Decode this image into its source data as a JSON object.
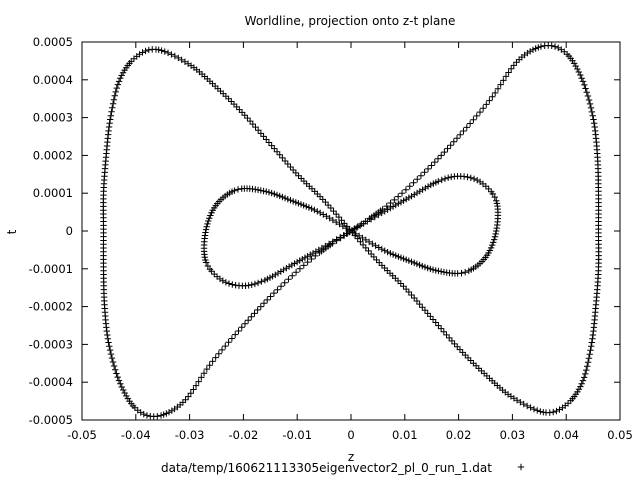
{
  "chart_data": {
    "type": "scatter",
    "title": "Worldline, projection onto z-t plane",
    "xlabel": "z",
    "ylabel": "t",
    "xlim": [
      -0.05,
      0.05
    ],
    "ylim": [
      -0.0005,
      0.0005
    ],
    "xticks": [
      {
        "value": -0.05,
        "label": "-0.05"
      },
      {
        "value": -0.04,
        "label": "-0.04"
      },
      {
        "value": -0.03,
        "label": "-0.03"
      },
      {
        "value": -0.02,
        "label": "-0.02"
      },
      {
        "value": -0.01,
        "label": "-0.01"
      },
      {
        "value": 0,
        "label": "0"
      },
      {
        "value": 0.01,
        "label": "0.01"
      },
      {
        "value": 0.02,
        "label": "0.02"
      },
      {
        "value": 0.03,
        "label": "0.03"
      },
      {
        "value": 0.04,
        "label": "0.04"
      },
      {
        "value": 0.05,
        "label": "0.05"
      }
    ],
    "yticks": [
      {
        "value": -0.0005,
        "label": "-0.0005"
      },
      {
        "value": -0.0004,
        "label": "-0.0004"
      },
      {
        "value": -0.0003,
        "label": "-0.0003"
      },
      {
        "value": -0.0002,
        "label": "-0.0002"
      },
      {
        "value": -0.0001,
        "label": "-0.0001"
      },
      {
        "value": 0,
        "label": "0"
      },
      {
        "value": 0.0001,
        "label": "0.0001"
      },
      {
        "value": 0.0002,
        "label": "0.0002"
      },
      {
        "value": 0.0003,
        "label": "0.0003"
      },
      {
        "value": 0.0004,
        "label": "0.0004"
      },
      {
        "value": 0.0005,
        "label": "0.0005"
      }
    ],
    "grid": false,
    "legend_position": "bottom-center",
    "series": [
      {
        "name": "data/temp/160621113305eigenvector2_pl_0_run_1.dat",
        "marker": "+",
        "color": "#000000",
        "curves": [
          {
            "kind": "outer-loop",
            "points": [
              [
                0,
                0
              ],
              [
                0.007,
                7e-05
              ],
              [
                0.014,
                0.00016
              ],
              [
                0.02,
                0.00025
              ],
              [
                0.026,
                0.00035
              ],
              [
                0.031,
                0.00045
              ],
              [
                0.036,
                0.00049
              ],
              [
                0.04,
                0.00047
              ],
              [
                0.043,
                0.0004
              ],
              [
                0.045,
                0.0003
              ],
              [
                0.0458,
                0.0002
              ],
              [
                0.046,
                0.0001
              ],
              [
                0.046,
                0
              ],
              [
                0.046,
                -0.0001
              ],
              [
                0.0455,
                -0.0002
              ],
              [
                0.0447,
                -0.0003
              ],
              [
                0.043,
                -0.0004
              ],
              [
                0.04,
                -0.00046
              ],
              [
                0.036,
                -0.00048
              ],
              [
                0.03,
                -0.00044
              ],
              [
                0.025,
                -0.00038
              ],
              [
                0.02,
                -0.00031
              ],
              [
                0.015,
                -0.00023
              ],
              [
                0.01,
                -0.00015
              ],
              [
                0.005,
                -8e-05
              ],
              [
                0,
                0
              ],
              [
                -0.005,
                8e-05
              ],
              [
                -0.01,
                0.00015
              ],
              [
                -0.015,
                0.00023
              ],
              [
                -0.02,
                0.00031
              ],
              [
                -0.025,
                0.00038
              ],
              [
                -0.03,
                0.00044
              ],
              [
                -0.036,
                0.00048
              ],
              [
                -0.04,
                0.00046
              ],
              [
                -0.043,
                0.0004
              ],
              [
                -0.0447,
                0.0003
              ],
              [
                -0.0455,
                0.0002
              ],
              [
                -0.046,
                0.0001
              ],
              [
                -0.046,
                0
              ],
              [
                -0.046,
                -0.0001
              ],
              [
                -0.0458,
                -0.0002
              ],
              [
                -0.045,
                -0.0003
              ],
              [
                -0.043,
                -0.0004
              ],
              [
                -0.04,
                -0.00047
              ],
              [
                -0.036,
                -0.00049
              ],
              [
                -0.031,
                -0.00045
              ],
              [
                -0.026,
                -0.00035
              ],
              [
                -0.02,
                -0.00025
              ],
              [
                -0.014,
                -0.00016
              ],
              [
                -0.007,
                -7e-05
              ],
              [
                0,
                0
              ]
            ]
          },
          {
            "kind": "inner-loop",
            "points": [
              [
                0,
                0
              ],
              [
                0.006,
                5e-05
              ],
              [
                0.011,
                9e-05
              ],
              [
                0.016,
                0.00013
              ],
              [
                0.02,
                0.000145
              ],
              [
                0.024,
                0.00013
              ],
              [
                0.027,
                8e-05
              ],
              [
                0.027,
                0
              ],
              [
                0.025,
                -7e-05
              ],
              [
                0.021,
                -0.00011
              ],
              [
                0.016,
                -0.000105
              ],
              [
                0.011,
                -8e-05
              ],
              [
                0.006,
                -5e-05
              ],
              [
                0,
                0
              ],
              [
                -0.006,
                5e-05
              ],
              [
                -0.011,
                8e-05
              ],
              [
                -0.016,
                0.000105
              ],
              [
                -0.021,
                0.00011
              ],
              [
                -0.025,
                7e-05
              ],
              [
                -0.027,
                0
              ],
              [
                -0.027,
                -8e-05
              ],
              [
                -0.024,
                -0.00013
              ],
              [
                -0.02,
                -0.000145
              ],
              [
                -0.016,
                -0.00013
              ],
              [
                -0.011,
                -9e-05
              ],
              [
                -0.006,
                -5e-05
              ],
              [
                0,
                0
              ]
            ]
          }
        ]
      }
    ]
  }
}
